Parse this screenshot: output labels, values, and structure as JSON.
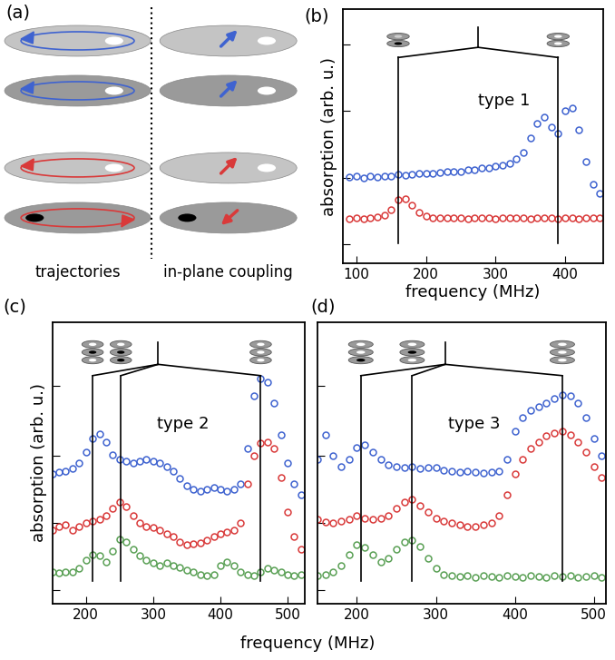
{
  "diagram": {
    "label": "(a)",
    "columns": [
      "trajectories",
      "in-plane coupling"
    ]
  },
  "chart_data": [
    {
      "panel": "(b)",
      "type": "scatter",
      "x_label": "frequency (MHz)",
      "y_label": "absorption (arb. u.)",
      "xlim": [
        80,
        455
      ],
      "ylim": [
        0,
        4
      ],
      "xticks": [
        100,
        200,
        300,
        400
      ],
      "yticks": [
        0.3,
        1.35,
        2.4,
        3.45
      ],
      "tick_labels": "x",
      "annotation": "type 1",
      "mode_lines": [
        160,
        390
      ],
      "x": [
        90,
        100,
        110,
        120,
        130,
        140,
        150,
        160,
        170,
        180,
        190,
        200,
        210,
        220,
        230,
        240,
        250,
        260,
        270,
        280,
        290,
        300,
        310,
        320,
        330,
        340,
        350,
        360,
        370,
        380,
        390,
        400,
        410,
        420,
        430,
        440,
        450
      ],
      "series": [
        {
          "color": "#3f63d0",
          "marker": "circle",
          "values": [
            1.36,
            1.38,
            1.35,
            1.37,
            1.36,
            1.38,
            1.37,
            1.4,
            1.39,
            1.4,
            1.41,
            1.42,
            1.41,
            1.43,
            1.44,
            1.45,
            1.44,
            1.47,
            1.48,
            1.5,
            1.5,
            1.53,
            1.55,
            1.58,
            1.64,
            1.75,
            1.98,
            2.2,
            2.3,
            2.15,
            2.05,
            2.4,
            2.45,
            2.1,
            1.6,
            1.25,
            1.1
          ]
        },
        {
          "color": "#d93a3a",
          "marker": "circle",
          "values": [
            0.7,
            0.71,
            0.7,
            0.72,
            0.73,
            0.76,
            0.85,
            1.0,
            1.02,
            0.92,
            0.8,
            0.74,
            0.72,
            0.71,
            0.71,
            0.72,
            0.71,
            0.7,
            0.71,
            0.72,
            0.71,
            0.7,
            0.71,
            0.72,
            0.71,
            0.72,
            0.7,
            0.71,
            0.72,
            0.71,
            0.7,
            0.72,
            0.71,
            0.7,
            0.71,
            0.72,
            0.71
          ]
        }
      ]
    },
    {
      "panel": "(c)",
      "type": "scatter",
      "x_label": "frequency (MHz)",
      "y_label": "absorption (arb. u.)",
      "xlim": [
        150,
        525
      ],
      "ylim": [
        0,
        4
      ],
      "xticks": [
        200,
        300,
        400,
        500
      ],
      "yticks": [
        0.2,
        1.15,
        2.1,
        3.1
      ],
      "tick_labels": "x",
      "annotation": "type 2",
      "mode_lines": [
        210,
        252,
        460
      ],
      "x": [
        150,
        160,
        170,
        180,
        190,
        200,
        210,
        220,
        230,
        240,
        250,
        260,
        270,
        280,
        290,
        300,
        310,
        320,
        330,
        340,
        350,
        360,
        370,
        380,
        390,
        400,
        410,
        420,
        430,
        440,
        450,
        460,
        470,
        480,
        490,
        500,
        510,
        520
      ],
      "series": [
        {
          "color": "#3f63d0",
          "marker": "circle",
          "values": [
            1.85,
            1.87,
            1.88,
            1.92,
            2.0,
            2.15,
            2.35,
            2.41,
            2.3,
            2.12,
            2.05,
            2.02,
            2.0,
            2.03,
            2.05,
            2.02,
            2.0,
            1.95,
            1.88,
            1.78,
            1.68,
            1.62,
            1.6,
            1.62,
            1.65,
            1.62,
            1.6,
            1.62,
            1.7,
            2.2,
            2.95,
            3.2,
            3.15,
            2.85,
            2.4,
            2.0,
            1.7,
            1.55
          ]
        },
        {
          "color": "#d93a3a",
          "marker": "circle",
          "values": [
            1.05,
            1.1,
            1.12,
            1.05,
            1.1,
            1.15,
            1.18,
            1.2,
            1.25,
            1.35,
            1.45,
            1.38,
            1.25,
            1.15,
            1.1,
            1.08,
            1.05,
            1.0,
            0.95,
            0.88,
            0.84,
            0.85,
            0.86,
            0.9,
            0.95,
            1.0,
            1.02,
            1.05,
            1.15,
            1.7,
            2.1,
            2.28,
            2.3,
            2.2,
            1.8,
            1.3,
            0.95,
            0.78
          ]
        },
        {
          "color": "#5aa055",
          "marker": "circle",
          "values": [
            0.45,
            0.44,
            0.46,
            0.45,
            0.5,
            0.62,
            0.7,
            0.68,
            0.6,
            0.75,
            0.92,
            0.88,
            0.78,
            0.68,
            0.62,
            0.58,
            0.55,
            0.58,
            0.55,
            0.52,
            0.48,
            0.45,
            0.42,
            0.4,
            0.42,
            0.55,
            0.6,
            0.55,
            0.45,
            0.42,
            0.4,
            0.45,
            0.5,
            0.48,
            0.45,
            0.42,
            0.4,
            0.42
          ]
        }
      ]
    },
    {
      "panel": "(d)",
      "type": "scatter",
      "xlim": [
        150,
        515
      ],
      "ylim": [
        0,
        4
      ],
      "xticks": [
        200,
        300,
        400,
        500
      ],
      "yticks": [
        0.2,
        1.15,
        2.1,
        3.1
      ],
      "tick_labels": "x",
      "annotation": "type 3",
      "mode_lines": [
        205,
        270,
        460
      ],
      "x": [
        150,
        160,
        170,
        180,
        190,
        200,
        210,
        220,
        230,
        240,
        250,
        260,
        270,
        280,
        290,
        300,
        310,
        320,
        330,
        340,
        350,
        360,
        370,
        380,
        390,
        400,
        410,
        420,
        430,
        440,
        450,
        460,
        470,
        480,
        490,
        500,
        510
      ],
      "series": [
        {
          "color": "#3f63d0",
          "marker": "circle",
          "values": [
            2.05,
            2.4,
            2.1,
            1.95,
            2.05,
            2.22,
            2.26,
            2.15,
            2.05,
            1.98,
            1.95,
            1.93,
            1.95,
            1.92,
            1.93,
            1.93,
            1.9,
            1.88,
            1.87,
            1.88,
            1.87,
            1.86,
            1.87,
            1.88,
            2.05,
            2.45,
            2.65,
            2.75,
            2.8,
            2.85,
            2.92,
            2.97,
            2.95,
            2.85,
            2.65,
            2.35,
            2.1
          ]
        },
        {
          "color": "#d93a3a",
          "marker": "circle",
          "values": [
            1.2,
            1.16,
            1.15,
            1.18,
            1.2,
            1.25,
            1.22,
            1.2,
            1.22,
            1.25,
            1.35,
            1.45,
            1.48,
            1.4,
            1.3,
            1.22,
            1.18,
            1.15,
            1.12,
            1.1,
            1.1,
            1.12,
            1.15,
            1.25,
            1.55,
            1.85,
            2.05,
            2.2,
            2.3,
            2.38,
            2.42,
            2.45,
            2.4,
            2.3,
            2.15,
            1.95,
            1.8
          ]
        },
        {
          "color": "#5aa055",
          "marker": "circle",
          "values": [
            0.4,
            0.42,
            0.45,
            0.55,
            0.7,
            0.84,
            0.8,
            0.7,
            0.6,
            0.65,
            0.78,
            0.88,
            0.9,
            0.82,
            0.65,
            0.5,
            0.42,
            0.4,
            0.39,
            0.4,
            0.38,
            0.4,
            0.39,
            0.38,
            0.4,
            0.39,
            0.38,
            0.4,
            0.39,
            0.38,
            0.4,
            0.39,
            0.4,
            0.38,
            0.39,
            0.4,
            0.38
          ]
        }
      ]
    }
  ]
}
